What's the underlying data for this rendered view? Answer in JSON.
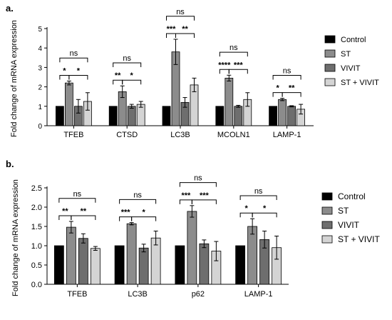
{
  "chart_data": [
    {
      "panel": "a.",
      "type": "bar",
      "categories": [
        "TFEB",
        "CTSD",
        "LC3B",
        "MCOLN1",
        "LAMP-1"
      ],
      "series": [
        {
          "name": "Control",
          "color": "#000000",
          "values": [
            1,
            1,
            1,
            1,
            1
          ],
          "errors": [
            0,
            0,
            0,
            0,
            0
          ]
        },
        {
          "name": "ST",
          "color": "#8c8c8c",
          "values": [
            2.2,
            1.75,
            3.8,
            2.45,
            1.35
          ],
          "errors": [
            0.1,
            0.3,
            0.65,
            0.15,
            0.06
          ]
        },
        {
          "name": "VIVIT",
          "color": "#6e6e6e",
          "values": [
            1.0,
            1.0,
            1.2,
            1.0,
            1.0
          ],
          "errors": [
            0.35,
            0.1,
            0.25,
            0.05,
            0.03
          ]
        },
        {
          "name": "ST + VIVIT",
          "color": "#d4d4d4",
          "values": [
            1.25,
            1.1,
            2.1,
            1.35,
            0.85
          ],
          "errors": [
            0.45,
            0.15,
            0.35,
            0.35,
            0.25
          ]
        }
      ],
      "ylabel": "Fold change  of mRNA expression",
      "ylim": [
        0,
        5
      ],
      "yticks": [
        0,
        1,
        2,
        3,
        4,
        5
      ],
      "ytick_labels": [
        "0",
        "1",
        "2",
        "3",
        "4",
        "5"
      ],
      "legend_position": "right",
      "significance": [
        {
          "category": "TFEB",
          "pairs": [
            {
              "from": 0,
              "to": 1,
              "label": "*"
            },
            {
              "from": 1,
              "to": 3,
              "label": "*"
            },
            {
              "from": 0,
              "to": 3,
              "label": "ns"
            }
          ]
        },
        {
          "category": "CTSD",
          "pairs": [
            {
              "from": 0,
              "to": 1,
              "label": "**"
            },
            {
              "from": 1,
              "to": 3,
              "label": "*"
            },
            {
              "from": 0,
              "to": 3,
              "label": "ns"
            }
          ]
        },
        {
          "category": "LC3B",
          "pairs": [
            {
              "from": 0,
              "to": 1,
              "label": "***"
            },
            {
              "from": 1,
              "to": 3,
              "label": "**"
            },
            {
              "from": 0,
              "to": 3,
              "label": "ns"
            }
          ]
        },
        {
          "category": "MCOLN1",
          "pairs": [
            {
              "from": 0,
              "to": 1,
              "label": "****"
            },
            {
              "from": 1,
              "to": 3,
              "label": "***"
            },
            {
              "from": 0,
              "to": 3,
              "label": "ns"
            }
          ]
        },
        {
          "category": "LAMP-1",
          "pairs": [
            {
              "from": 0,
              "to": 1,
              "label": "*"
            },
            {
              "from": 1,
              "to": 3,
              "label": "**"
            },
            {
              "from": 0,
              "to": 3,
              "label": "ns"
            }
          ]
        }
      ]
    },
    {
      "panel": "b.",
      "type": "bar",
      "categories": [
        "TFEB",
        "LC3B",
        "p62",
        "LAMP-1"
      ],
      "series": [
        {
          "name": "Control",
          "color": "#000000",
          "values": [
            1.0,
            1.0,
            1.0,
            1.0
          ],
          "errors": [
            0,
            0,
            0,
            0
          ]
        },
        {
          "name": "ST",
          "color": "#8c8c8c",
          "values": [
            1.48,
            1.57,
            1.89,
            1.5
          ],
          "errors": [
            0.15,
            0.03,
            0.15,
            0.2
          ]
        },
        {
          "name": "VIVIT",
          "color": "#6e6e6e",
          "values": [
            1.19,
            0.94,
            1.05,
            1.16
          ],
          "errors": [
            0.12,
            0.1,
            0.1,
            0.22
          ]
        },
        {
          "name": "ST + VIVIT",
          "color": "#d4d4d4",
          "values": [
            0.93,
            1.2,
            0.86,
            0.95
          ],
          "errors": [
            0.05,
            0.18,
            0.25,
            0.3
          ]
        }
      ],
      "ylabel": "Fold change  of mRNA expression",
      "ylim": [
        0,
        2.5
      ],
      "yticks": [
        0,
        0.5,
        1.0,
        1.5,
        2.0,
        2.5
      ],
      "ytick_labels": [
        "0.0",
        "0.5",
        "1.0",
        "1.5",
        "2.0",
        "2.5"
      ],
      "legend_position": "right",
      "significance": [
        {
          "category": "TFEB",
          "pairs": [
            {
              "from": 0,
              "to": 1,
              "label": "**"
            },
            {
              "from": 1,
              "to": 3,
              "label": "**"
            },
            {
              "from": 0,
              "to": 3,
              "label": "ns"
            }
          ]
        },
        {
          "category": "LC3B",
          "pairs": [
            {
              "from": 0,
              "to": 1,
              "label": "***"
            },
            {
              "from": 1,
              "to": 3,
              "label": "*"
            },
            {
              "from": 0,
              "to": 3,
              "label": "ns"
            }
          ]
        },
        {
          "category": "p62",
          "pairs": [
            {
              "from": 0,
              "to": 1,
              "label": "***"
            },
            {
              "from": 1,
              "to": 3,
              "label": "***"
            },
            {
              "from": 0,
              "to": 3,
              "label": "ns"
            }
          ]
        },
        {
          "category": "LAMP-1",
          "pairs": [
            {
              "from": 0,
              "to": 1,
              "label": "*"
            },
            {
              "from": 1,
              "to": 3,
              "label": "*"
            },
            {
              "from": 0,
              "to": 3,
              "label": "ns"
            }
          ]
        }
      ]
    }
  ]
}
